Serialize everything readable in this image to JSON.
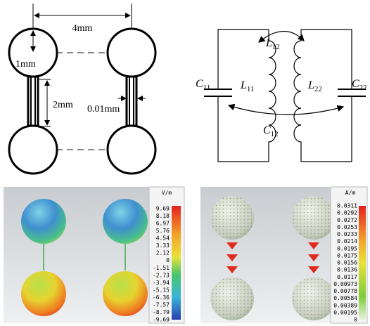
{
  "geometry": {
    "spacing": "4mm",
    "radius": "1mm",
    "length": "2mm",
    "width": "0.01mm"
  },
  "circuit": {
    "labels": [
      {
        "main": "L",
        "sub": "12"
      },
      {
        "main": "L",
        "sub": "11"
      },
      {
        "main": "L",
        "sub": "22"
      },
      {
        "main": "C",
        "sub": "11"
      },
      {
        "main": "C",
        "sub": "22"
      },
      {
        "main": "C",
        "sub": "12"
      }
    ]
  },
  "electric_field": {
    "unit": "V/m",
    "scale": [
      "9.69",
      "8.18",
      "6.97",
      "5.76",
      "4.54",
      "3.33",
      "2.12",
      "0",
      "-1.51",
      "-2.73",
      "-3.94",
      "-5.15",
      "-6.36",
      "-7.57",
      "-8.79",
      "-9.69"
    ]
  },
  "magnetic_field": {
    "unit": "A/m",
    "scale": [
      "0.0311",
      "0.0292",
      "0.0272",
      "0.0253",
      "0.0233",
      "0.0214",
      "0.0195",
      "0.0175",
      "0.0156",
      "0.0136",
      "0.0117",
      "0.00973",
      "0.00778",
      "0.00584",
      "0.00389",
      "0.00195",
      "0"
    ]
  }
}
